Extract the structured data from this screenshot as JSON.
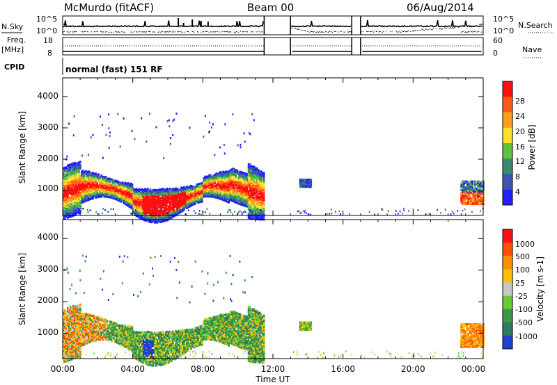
{
  "header": {
    "station": "McMurdo (fitACF)",
    "beam": "Beam 00",
    "date": "06/Aug/2014"
  },
  "side_labels": {
    "n_sky": "N.Sky",
    "freq": "Freq.",
    "freq_unit": "[MHz]",
    "cpid": "CPID",
    "n_search": "N.Search",
    "nave": "Nave"
  },
  "mode_text": "normal (fast) 151 RF",
  "chart_data": [
    {
      "type": "line",
      "panel": "noise",
      "yticks_left": [
        "10^5",
        "10^0"
      ],
      "yticks_right": [
        "10^5",
        "10^0"
      ],
      "gaps_ut_hours": [
        [
          11.5,
          13.0
        ],
        [
          16.5,
          17.0
        ]
      ],
      "series": [
        {
          "name": "N.Sky",
          "style": "solid"
        },
        {
          "name": "N.Search",
          "style": "dotted"
        }
      ]
    },
    {
      "type": "line",
      "panel": "frequency_nave",
      "yticks_left": [
        "18",
        "8"
      ],
      "yticks_right": [
        "60",
        "0"
      ],
      "series": [
        {
          "name": "Freq.",
          "style": "solid"
        },
        {
          "name": "Nave",
          "style": "dotted"
        }
      ]
    },
    {
      "type": "heatmap",
      "panel": "power",
      "ylabel": "Slant Range [km]",
      "ylim": [
        200,
        4600
      ],
      "yticks": [
        "1000",
        "2000",
        "3000",
        "4000"
      ],
      "colorbar": {
        "label": "Power [dB]",
        "ticks": [
          "4",
          "8",
          "12",
          "16",
          "20",
          "24",
          "28"
        ],
        "colors": [
          "#1f1fff",
          "#3c55b4",
          "#3a8a6e",
          "#5cc33a",
          "#ffe02a",
          "#ff9d1f",
          "#ff5a14",
          "#ff1010"
        ]
      },
      "regions": [
        {
          "x": [
            0.0,
            11.5
          ],
          "y": [
            400,
            1900
          ],
          "level": "high"
        },
        {
          "x": [
            13.3,
            14.2
          ],
          "y": [
            1100,
            1400
          ],
          "level": "low"
        },
        {
          "x": [
            22.7,
            24.0
          ],
          "y": [
            600,
            1300
          ],
          "level": "mid"
        }
      ]
    },
    {
      "type": "heatmap",
      "panel": "velocity",
      "ylabel": "Slant Range [km]",
      "ylim": [
        200,
        4600
      ],
      "yticks": [
        "1000",
        "2000",
        "3000",
        "4000"
      ],
      "colorbar": {
        "label": "Velocity [m s-1]",
        "ticks": [
          "1000",
          "500",
          "100",
          "25",
          "-25",
          "-100",
          "-500",
          "-1000"
        ],
        "colors": [
          "#2040d0",
          "#2e7a5e",
          "#3a9a4a",
          "#66cc33",
          "#c8c8c8",
          "#ffc000",
          "#ff9000",
          "#ff5000",
          "#ff1010"
        ]
      },
      "regions": [
        {
          "x": [
            0.0,
            11.5
          ],
          "y": [
            400,
            2000
          ],
          "level": "mixed"
        },
        {
          "x": [
            13.6,
            14.2
          ],
          "y": [
            1200,
            1500
          ],
          "level": "mixed"
        },
        {
          "x": [
            22.6,
            24.0
          ],
          "y": [
            600,
            1400
          ],
          "level": "away"
        }
      ]
    }
  ],
  "x_axis": {
    "label": "Time UT",
    "ticks": [
      "00:00",
      "04:00",
      "08:00",
      "12:00",
      "16:00",
      "20:00",
      "00:00"
    ],
    "range_hours": [
      0,
      24
    ]
  }
}
